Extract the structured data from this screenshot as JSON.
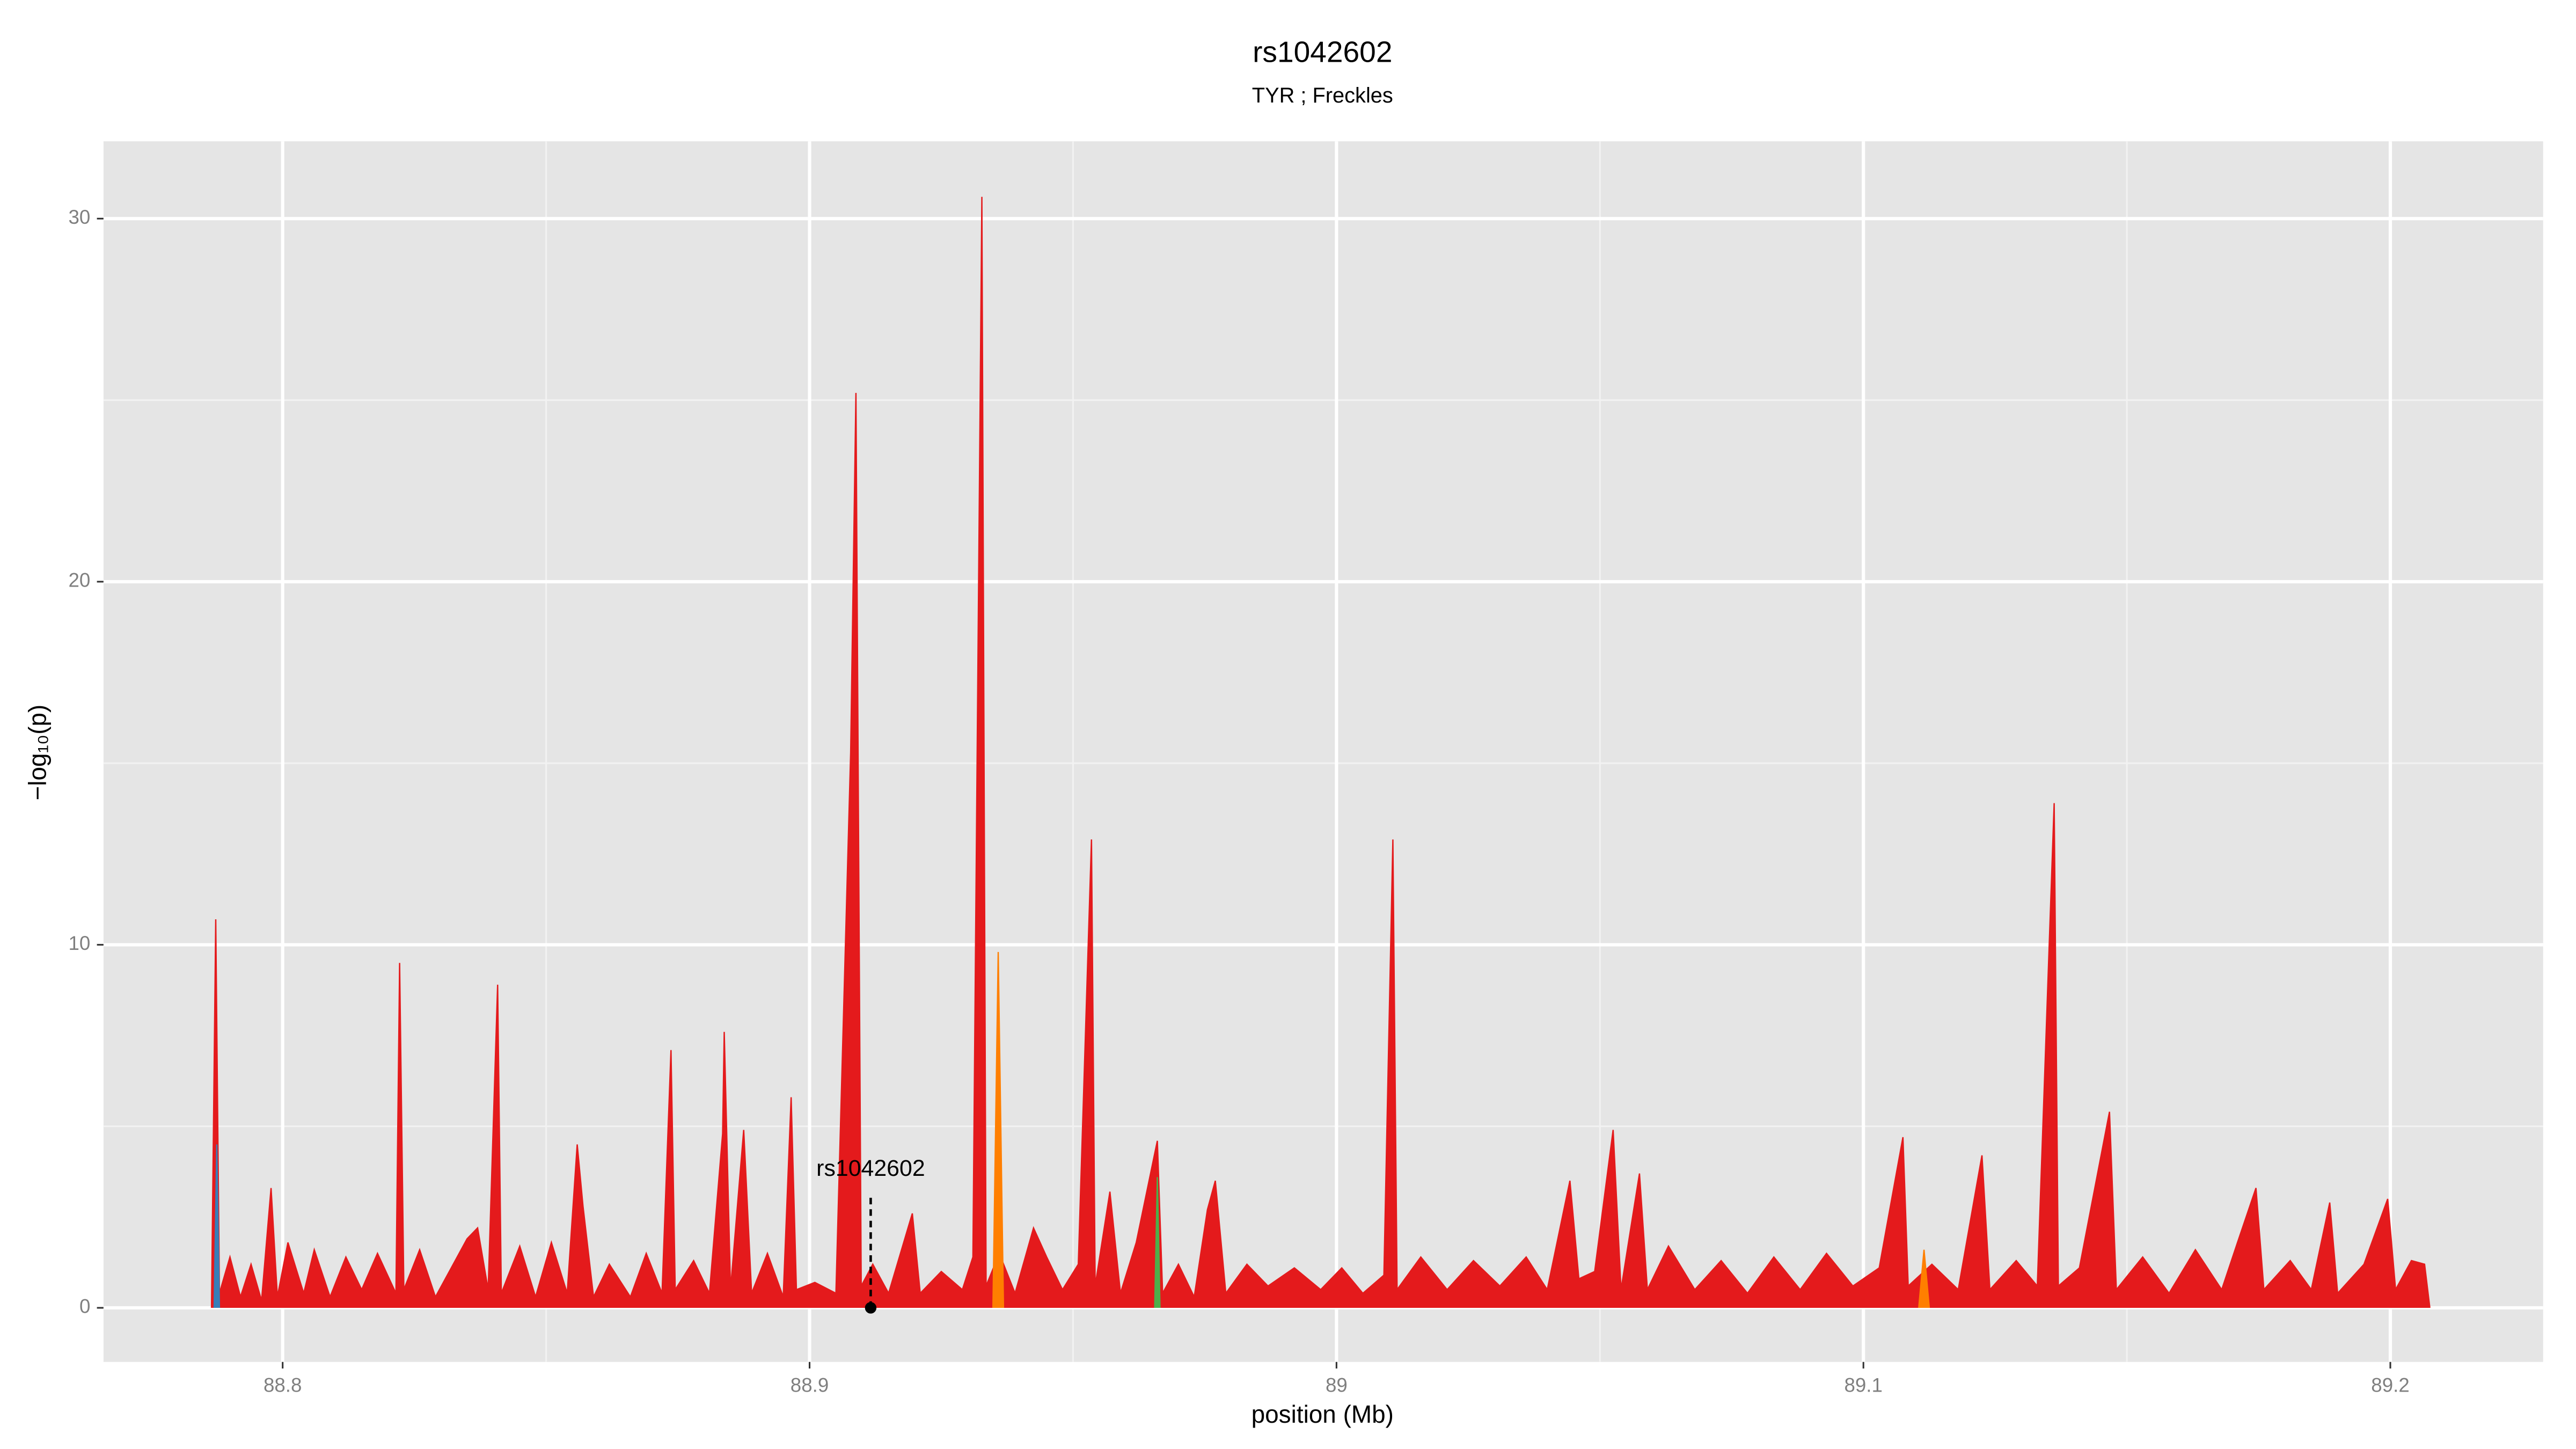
{
  "chart_data": {
    "type": "area",
    "title": "rs1042602",
    "subtitle": "TYR ; Freckles",
    "xlabel": "position (Mb)",
    "ylabel": "−log₁₀(p)",
    "xlim": [
      88.766,
      89.229
    ],
    "ylim": [
      -1.49,
      32.13
    ],
    "xticks": [
      88.8,
      88.9,
      89.0,
      89.1,
      89.2
    ],
    "yticks": [
      0,
      10,
      20,
      30
    ],
    "x_minor_grid": [
      88.85,
      88.95,
      89.05,
      89.15
    ],
    "y_minor_grid": [
      5,
      15,
      25
    ],
    "grid": true,
    "series": [
      {
        "color": "#e41a1c",
        "x": [
          88.7865,
          88.7873,
          88.788,
          88.79,
          88.792,
          88.794,
          88.796,
          88.7978,
          88.799,
          88.801,
          88.804,
          88.806,
          88.809,
          88.812,
          88.815,
          88.818,
          88.8215,
          88.8222,
          88.823,
          88.826,
          88.829,
          88.832,
          88.835,
          88.837,
          88.839,
          88.8408,
          88.8415,
          88.845,
          88.848,
          88.851,
          88.854,
          88.8559,
          88.857,
          88.859,
          88.862,
          88.866,
          88.869,
          88.872,
          88.8737,
          88.8745,
          88.878,
          88.881,
          88.8835,
          88.8838,
          88.885,
          88.8875,
          88.889,
          88.892,
          88.895,
          88.8965,
          88.8975,
          88.901,
          88.905,
          88.9078,
          88.9088,
          88.9098,
          88.912,
          88.915,
          88.9195,
          88.921,
          88.925,
          88.929,
          88.931,
          88.9327,
          88.9335,
          88.936,
          88.939,
          88.9425,
          88.945,
          88.948,
          88.951,
          88.9535,
          88.9542,
          88.957,
          88.959,
          88.962,
          88.966,
          88.967,
          88.97,
          88.973,
          88.9755,
          88.977,
          88.979,
          88.983,
          88.987,
          88.992,
          88.997,
          89.001,
          89.005,
          89.009,
          89.0107,
          89.0115,
          89.016,
          89.021,
          89.026,
          89.031,
          89.036,
          89.04,
          89.0443,
          89.046,
          89.049,
          89.0525,
          89.054,
          89.0575,
          89.059,
          89.063,
          89.068,
          89.073,
          89.078,
          89.083,
          89.088,
          89.093,
          89.098,
          89.103,
          89.1075,
          89.1085,
          89.113,
          89.118,
          89.1225,
          89.124,
          89.129,
          89.133,
          89.1362,
          89.137,
          89.141,
          89.1467,
          89.148,
          89.153,
          89.158,
          89.163,
          89.168,
          89.171,
          89.1745,
          89.176,
          89.181,
          89.185,
          89.1885,
          89.19,
          89.195,
          89.1995,
          89.201,
          89.204,
          89.2065,
          89.2075
        ],
        "values": [
          0,
          10.7,
          0.4,
          1.4,
          0.3,
          1.2,
          0.2,
          3.3,
          0.3,
          1.8,
          0.4,
          1.6,
          0.3,
          1.4,
          0.5,
          1.5,
          0.4,
          9.5,
          0.5,
          1.6,
          0.3,
          1.1,
          1.9,
          2.2,
          0.5,
          8.9,
          0.4,
          1.7,
          0.3,
          1.8,
          0.4,
          4.5,
          2.8,
          0.3,
          1.2,
          0.3,
          1.5,
          0.4,
          7.1,
          0.5,
          1.3,
          0.4,
          4.8,
          7.6,
          0.5,
          4.9,
          0.4,
          1.5,
          0.3,
          5.8,
          0.5,
          0.7,
          0.4,
          15.3,
          25.2,
          0.6,
          1.2,
          0.4,
          2.6,
          0.4,
          1.0,
          0.5,
          1.4,
          30.6,
          0.6,
          1.5,
          0.4,
          2.2,
          1.4,
          0.5,
          1.2,
          12.9,
          0.6,
          3.2,
          0.4,
          1.8,
          4.6,
          0.4,
          1.2,
          0.3,
          2.7,
          3.5,
          0.4,
          1.2,
          0.6,
          1.1,
          0.5,
          1.1,
          0.4,
          0.9,
          12.9,
          0.5,
          1.4,
          0.5,
          1.3,
          0.6,
          1.4,
          0.5,
          3.5,
          0.8,
          1.0,
          4.9,
          0.5,
          3.7,
          0.5,
          1.7,
          0.5,
          1.3,
          0.4,
          1.4,
          0.5,
          1.5,
          0.6,
          1.1,
          4.7,
          0.6,
          1.2,
          0.5,
          4.2,
          0.5,
          1.3,
          0.6,
          13.9,
          0.6,
          1.1,
          5.4,
          0.5,
          1.4,
          0.4,
          1.6,
          0.5,
          1.8,
          3.3,
          0.5,
          1.3,
          0.5,
          2.9,
          0.4,
          1.2,
          3.0,
          0.5,
          1.3,
          1.2,
          0
        ]
      },
      {
        "color": "#ff7f00",
        "x": [
          88.9348,
          88.9358,
          88.9368,
          null,
          89.1105,
          89.1115,
          89.1125
        ],
        "values": [
          0,
          9.8,
          0,
          null,
          0,
          1.6,
          0
        ]
      },
      {
        "color": "#4daf4a",
        "x": [
          88.9655,
          88.966,
          88.9665
        ],
        "values": [
          0,
          3.6,
          0
        ]
      },
      {
        "color": "#377eb8",
        "x": [
          88.787,
          88.7875,
          88.788
        ],
        "values": [
          0,
          4.5,
          0
        ]
      }
    ],
    "annotation": {
      "label": "rs1042602",
      "x": 88.9116,
      "y": 0
    }
  }
}
